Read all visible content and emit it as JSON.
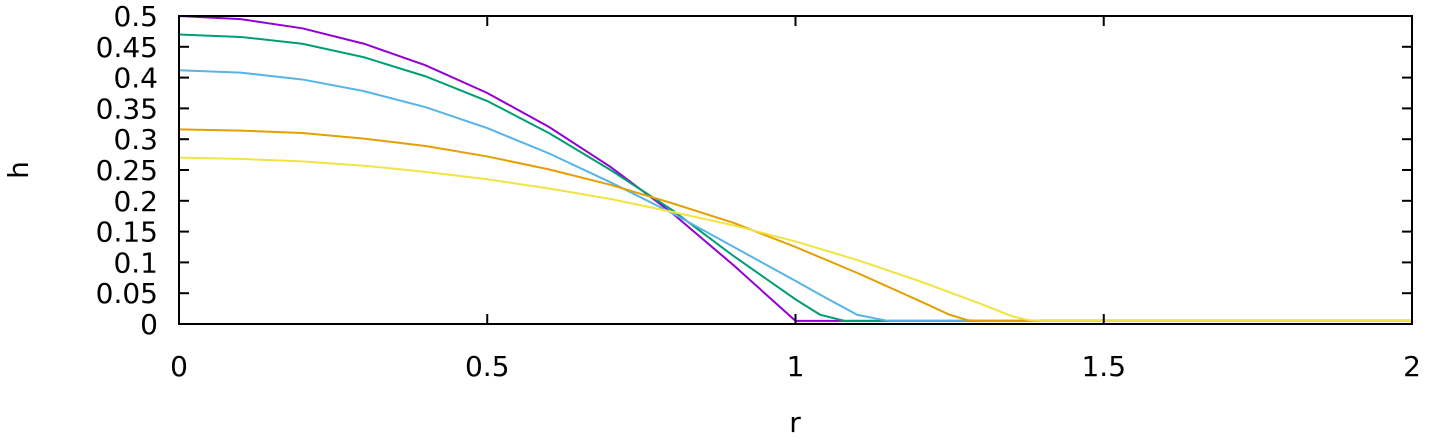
{
  "chart_data": {
    "type": "line",
    "title": "",
    "xlabel": "r",
    "ylabel": "h",
    "xlim": [
      0,
      2
    ],
    "ylim": [
      0,
      0.5
    ],
    "xticks": [
      "0",
      "0.5",
      "1",
      "1.5",
      "2"
    ],
    "yticks": [
      "0",
      "0.05",
      "0.1",
      "0.15",
      "0.2",
      "0.25",
      "0.3",
      "0.35",
      "0.4",
      "0.45",
      "0.5"
    ],
    "grid": false,
    "legend": "none",
    "series": [
      {
        "color": "#9400d3",
        "x": [
          0,
          0.1,
          0.2,
          0.3,
          0.4,
          0.5,
          0.6,
          0.7,
          0.8,
          0.9,
          0.95,
          1.0,
          1.05,
          1.1,
          1.2,
          1.3,
          1.4,
          1.5,
          1.6,
          1.7,
          1.8,
          1.9,
          2.0
        ],
        "y": [
          0.5,
          0.495,
          0.48,
          0.455,
          0.42,
          0.375,
          0.32,
          0.255,
          0.18,
          0.095,
          0.05,
          0.005,
          0.005,
          0.005,
          0.005,
          0.005,
          0.005,
          0.005,
          0.005,
          0.005,
          0.005,
          0.005,
          0.005
        ]
      },
      {
        "color": "#009e73",
        "x": [
          0,
          0.1,
          0.2,
          0.3,
          0.4,
          0.5,
          0.6,
          0.7,
          0.8,
          0.9,
          1.0,
          1.04,
          1.08,
          1.1,
          1.2,
          1.3,
          1.4,
          1.5,
          1.6,
          1.7,
          1.8,
          1.9,
          2.0
        ],
        "y": [
          0.47,
          0.466,
          0.455,
          0.433,
          0.402,
          0.362,
          0.31,
          0.25,
          0.185,
          0.11,
          0.04,
          0.015,
          0.005,
          0.005,
          0.005,
          0.005,
          0.005,
          0.005,
          0.005,
          0.005,
          0.005,
          0.005,
          0.005
        ]
      },
      {
        "color": "#56b4e9",
        "x": [
          0,
          0.1,
          0.2,
          0.3,
          0.4,
          0.5,
          0.6,
          0.7,
          0.8,
          0.9,
          1.0,
          1.05,
          1.1,
          1.15,
          1.2,
          1.3,
          1.4,
          1.5,
          1.6,
          1.7,
          1.8,
          1.9,
          2.0
        ],
        "y": [
          0.412,
          0.408,
          0.397,
          0.378,
          0.352,
          0.318,
          0.277,
          0.23,
          0.18,
          0.125,
          0.07,
          0.042,
          0.015,
          0.005,
          0.005,
          0.005,
          0.005,
          0.005,
          0.005,
          0.005,
          0.005,
          0.005,
          0.005
        ]
      },
      {
        "color": "#e69f00",
        "x": [
          0,
          0.1,
          0.2,
          0.3,
          0.4,
          0.5,
          0.6,
          0.7,
          0.8,
          0.9,
          1.0,
          1.1,
          1.2,
          1.25,
          1.28,
          1.3,
          1.4,
          1.5,
          1.6,
          1.7,
          1.8,
          1.9,
          2.0
        ],
        "y": [
          0.316,
          0.314,
          0.31,
          0.301,
          0.289,
          0.272,
          0.251,
          0.226,
          0.196,
          0.164,
          0.125,
          0.083,
          0.038,
          0.015,
          0.006,
          0.005,
          0.005,
          0.005,
          0.005,
          0.005,
          0.005,
          0.005,
          0.005
        ]
      },
      {
        "color": "#f0e442",
        "x": [
          0,
          0.1,
          0.2,
          0.3,
          0.4,
          0.5,
          0.6,
          0.7,
          0.8,
          0.9,
          1.0,
          1.1,
          1.2,
          1.3,
          1.35,
          1.38,
          1.4,
          1.5,
          1.6,
          1.7,
          1.8,
          1.9,
          2.0
        ],
        "y": [
          0.27,
          0.268,
          0.264,
          0.257,
          0.247,
          0.235,
          0.22,
          0.203,
          0.182,
          0.16,
          0.134,
          0.104,
          0.07,
          0.033,
          0.013,
          0.006,
          0.005,
          0.005,
          0.005,
          0.005,
          0.005,
          0.005,
          0.005
        ]
      }
    ]
  }
}
